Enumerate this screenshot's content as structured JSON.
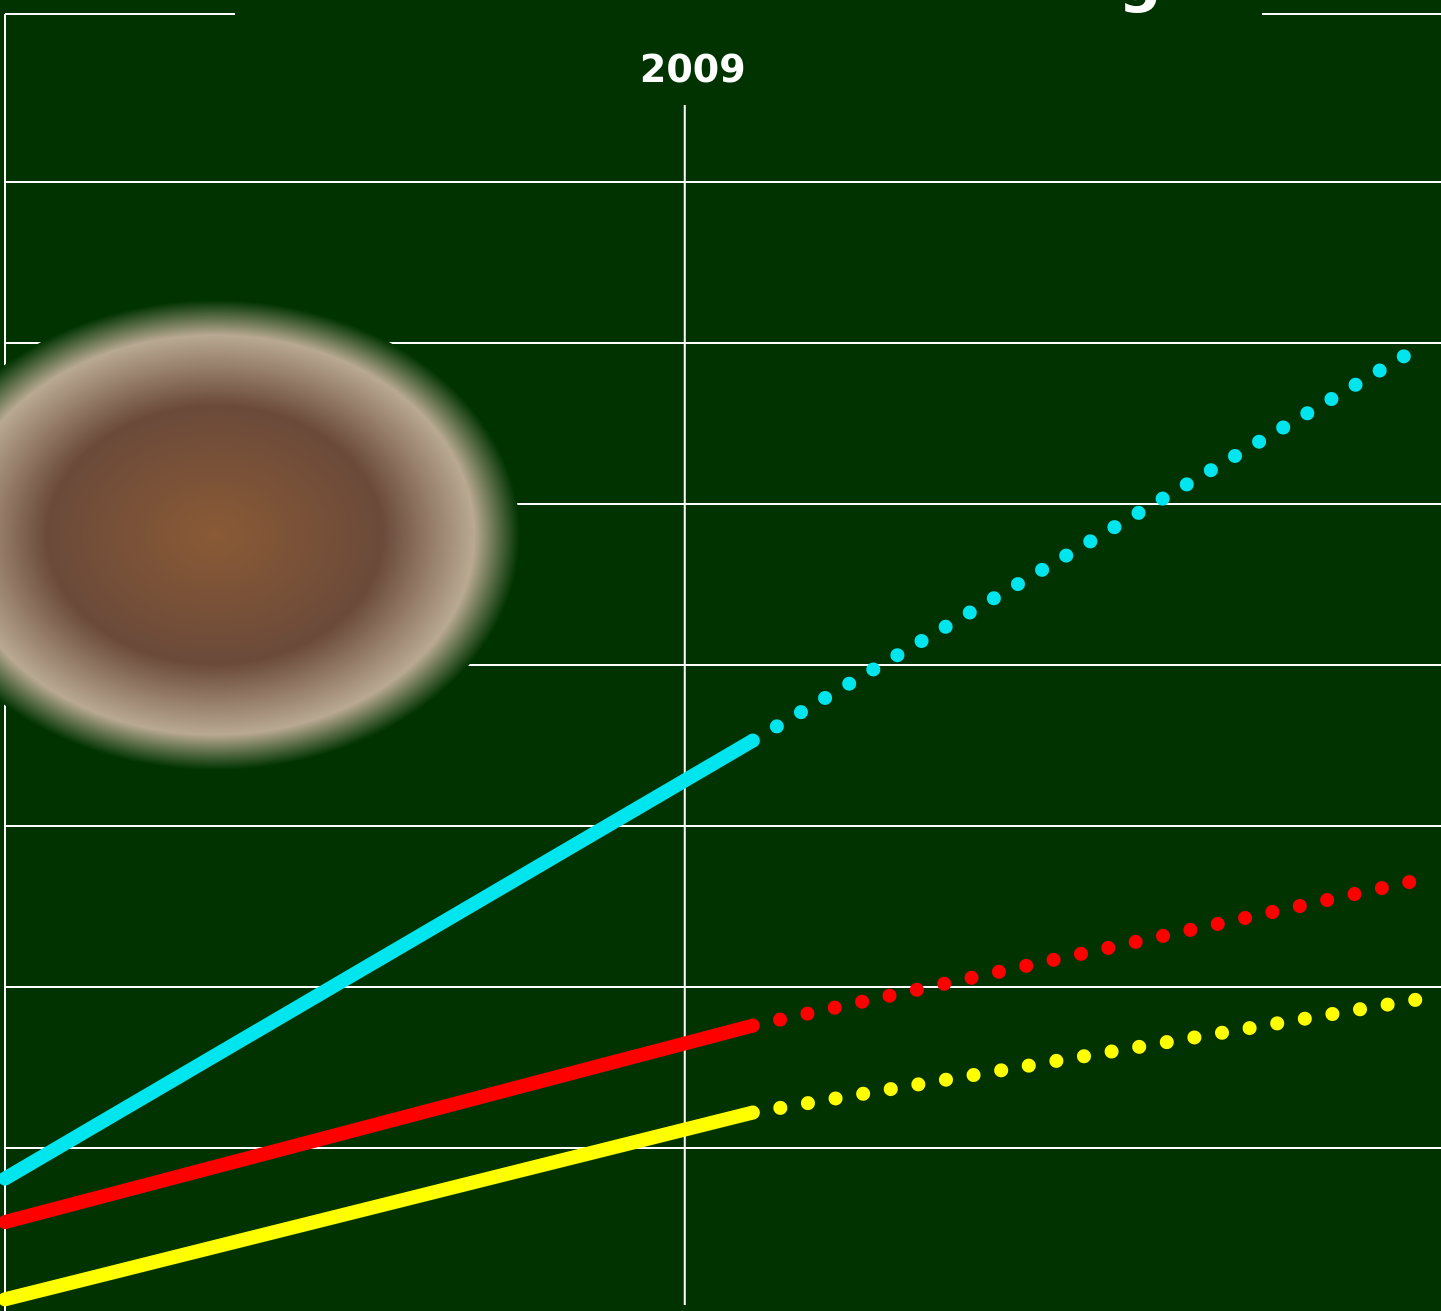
{
  "chart_data": {
    "type": "line",
    "title": "g",
    "x": [
      2005,
      2009.4,
      2013.3
    ],
    "xlim": [
      2005,
      2013.45
    ],
    "xticks": [
      2009
    ],
    "ylim": [
      0,
      8.13
    ],
    "yticks": [
      1,
      2,
      3,
      4,
      5,
      6,
      7
    ],
    "grid": true,
    "series": [
      {
        "color": "#00e5ee",
        "line_style": "solid",
        "values": [
          0.81,
          3.53,
          null
        ]
      },
      {
        "color": "#00e5ee",
        "line_style": "dotted",
        "values": [
          null,
          3.53,
          5.96
        ]
      },
      {
        "color": "#ff0000",
        "line_style": "solid",
        "values": [
          0.54,
          1.76,
          null
        ]
      },
      {
        "color": "#ff0000",
        "line_style": "dotted",
        "values": [
          null,
          1.76,
          2.66
        ]
      },
      {
        "color": "#ffff00",
        "line_style": "solid",
        "values": [
          0.06,
          1.22,
          null
        ]
      },
      {
        "color": "#ffff00",
        "line_style": "dotted",
        "values": [
          null,
          1.22,
          1.92
        ]
      }
    ]
  }
}
